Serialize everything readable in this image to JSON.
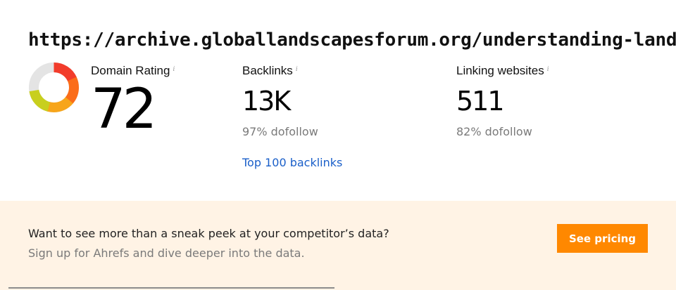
{
  "page": {
    "url_title": "https://archive.globallandscapesforum.org/understanding-landsc"
  },
  "metrics": {
    "domain_rating": {
      "label": "Domain Rating",
      "info": "i",
      "value": "72",
      "gauge_fraction": 0.72,
      "gauge_colors": [
        "#f23c2b",
        "#fb6d19",
        "#f7a51a",
        "#c8cf1e",
        "#e4e4e4"
      ]
    },
    "backlinks": {
      "label": "Backlinks",
      "info": "i",
      "value": "13K",
      "sub": "97% dofollow",
      "link": "Top 100 backlinks"
    },
    "linking_websites": {
      "label": "Linking websites",
      "info": "i",
      "value": "511",
      "sub": "82% dofollow"
    }
  },
  "promo": {
    "title": "Want to see more than a sneak peek at your competitor’s data?",
    "subtitle": "Sign up for Ahrefs and dive deeper into the data.",
    "button_label": "See pricing",
    "background": "#fff3e5",
    "button_color": "#ff8800"
  },
  "colors": {
    "link": "#1a5fc9"
  }
}
